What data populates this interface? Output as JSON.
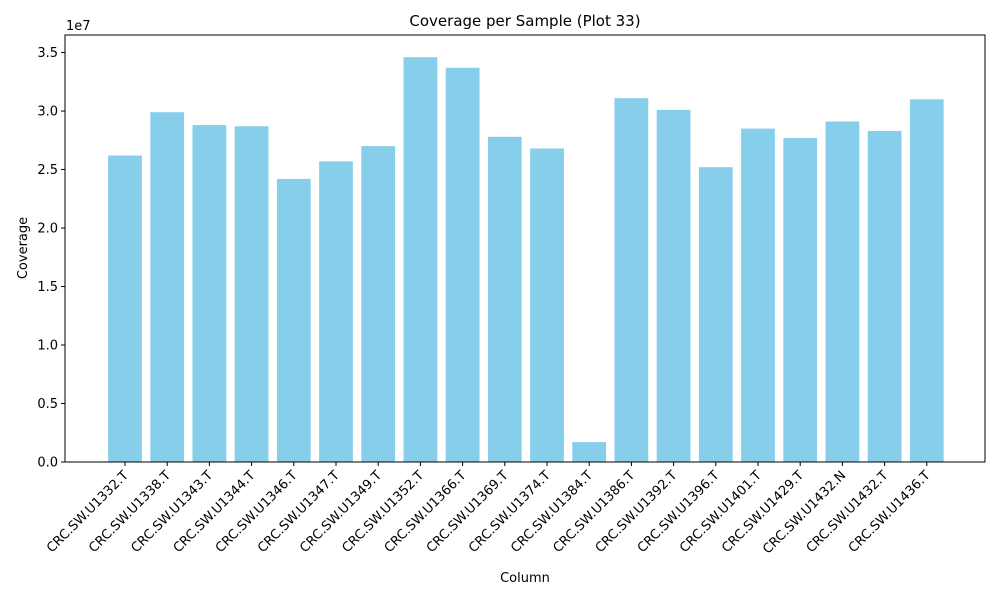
{
  "chart_data": {
    "type": "bar",
    "title": "Coverage per Sample (Plot 33)",
    "xlabel": "Column",
    "ylabel": "Coverage",
    "y_offset_label": "1e7",
    "ylim": [
      0,
      36500000
    ],
    "y_ticks": [
      0,
      5000000,
      10000000,
      15000000,
      20000000,
      25000000,
      30000000,
      35000000
    ],
    "y_tick_labels": [
      "0.0",
      "0.5",
      "1.0",
      "1.5",
      "2.0",
      "2.5",
      "3.0",
      "3.5"
    ],
    "grid": false,
    "categories": [
      "CRC.SW.U1332.T",
      "CRC.SW.U1338.T",
      "CRC.SW.U1343.T",
      "CRC.SW.U1344.T",
      "CRC.SW.U1346.T",
      "CRC.SW.U1347.T",
      "CRC.SW.U1349.T",
      "CRC.SW.U1352.T",
      "CRC.SW.U1366.T",
      "CRC.SW.U1369.T",
      "CRC.SW.U1374.T",
      "CRC.SW.U1384.T",
      "CRC.SW.U1386.T",
      "CRC.SW.U1392.T",
      "CRC.SW.U1396.T",
      "CRC.SW.U1401.T",
      "CRC.SW.U1429.T",
      "CRC.SW.U1432.N",
      "CRC.SW.U1432.T",
      "CRC.SW.U1436.T"
    ],
    "values": [
      26200000,
      29900000,
      28800000,
      28700000,
      24200000,
      25700000,
      27000000,
      34600000,
      33700000,
      27800000,
      26800000,
      1700000,
      31100000,
      30100000,
      25200000,
      28500000,
      27700000,
      29100000,
      28300000,
      31000000
    ],
    "bar_color": "#87ceeb"
  }
}
